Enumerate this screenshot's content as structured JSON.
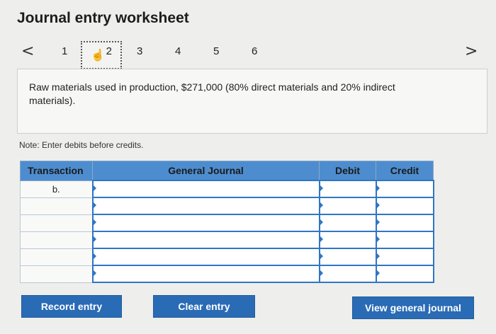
{
  "title": "Journal entry worksheet",
  "nav": {
    "prev": "<",
    "next": ">"
  },
  "steps": [
    "1",
    "2",
    "3",
    "4",
    "5",
    "6"
  ],
  "active_step": "2",
  "prompt": "Raw materials used in production, $271,000 (80% direct materials and 20% indirect materials).",
  "note": "Note: Enter debits before credits.",
  "table": {
    "headers": {
      "transaction": "Transaction",
      "journal": "General Journal",
      "debit": "Debit",
      "credit": "Credit"
    },
    "rows": [
      {
        "transaction": "b.",
        "account": "",
        "debit": "",
        "credit": ""
      },
      {
        "transaction": "",
        "account": "",
        "debit": "",
        "credit": ""
      },
      {
        "transaction": "",
        "account": "",
        "debit": "",
        "credit": ""
      },
      {
        "transaction": "",
        "account": "",
        "debit": "",
        "credit": ""
      },
      {
        "transaction": "",
        "account": "",
        "debit": "",
        "credit": ""
      },
      {
        "transaction": "",
        "account": "",
        "debit": "",
        "credit": ""
      }
    ]
  },
  "buttons": {
    "record": "Record entry",
    "clear": "Clear entry",
    "view": "View general journal"
  },
  "colors": {
    "header_bg": "#4d8dcf",
    "button_bg": "#2a6bb5",
    "field_border": "#2f76c4"
  }
}
